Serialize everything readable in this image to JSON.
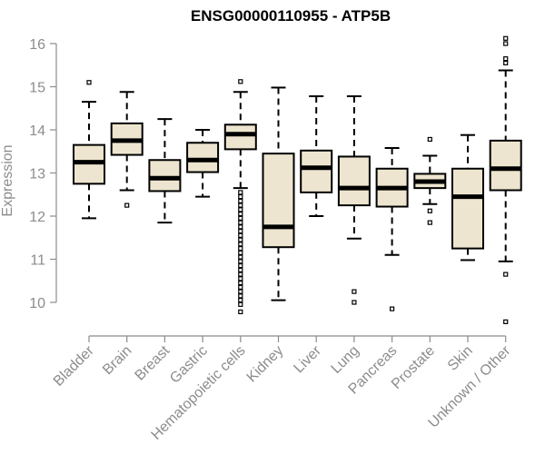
{
  "chart_data": {
    "type": "boxplot",
    "title": "ENSG00000110955 - ATP5B",
    "xlabel": "",
    "ylabel": "Expression",
    "ylim": [
      9.5,
      16.2
    ],
    "yticks": [
      10,
      11,
      12,
      13,
      14,
      15,
      16
    ],
    "box_color": "#ede5cf",
    "categories": [
      "Bladder",
      "Brain",
      "Breast",
      "Gastric",
      "Hematopoietic cells",
      "Kidney",
      "Liver",
      "Lung",
      "Pancreas",
      "Prostate",
      "Skin",
      "Unknown / Other"
    ],
    "series": [
      {
        "name": "Bladder",
        "whisker_low": 11.95,
        "q1": 12.75,
        "median": 13.25,
        "q3": 13.65,
        "whisker_high": 14.65,
        "outliers": [
          15.1
        ]
      },
      {
        "name": "Brain",
        "whisker_low": 12.6,
        "q1": 13.42,
        "median": 13.75,
        "q3": 14.15,
        "whisker_high": 14.88,
        "outliers": [
          12.25
        ]
      },
      {
        "name": "Breast",
        "whisker_low": 11.85,
        "q1": 12.58,
        "median": 12.88,
        "q3": 13.3,
        "whisker_high": 14.25,
        "outliers": []
      },
      {
        "name": "Gastric",
        "whisker_low": 12.45,
        "q1": 13.02,
        "median": 13.3,
        "q3": 13.7,
        "whisker_high": 14.0,
        "outliers": []
      },
      {
        "name": "Hematopoietic cells",
        "whisker_low": 12.65,
        "q1": 13.55,
        "median": 13.9,
        "q3": 14.12,
        "whisker_high": 14.88,
        "outliers": [
          15.12,
          12.55,
          12.45,
          12.35,
          12.25,
          12.15,
          12.05,
          11.95,
          11.85,
          11.75,
          11.65,
          11.55,
          11.45,
          11.35,
          11.25,
          11.15,
          11.05,
          10.95,
          10.85,
          10.75,
          10.65,
          10.55,
          10.45,
          10.35,
          10.25,
          10.15,
          10.05,
          9.95,
          9.78
        ]
      },
      {
        "name": "Kidney",
        "whisker_low": 10.05,
        "q1": 11.28,
        "median": 11.75,
        "q3": 13.45,
        "whisker_high": 14.98,
        "outliers": []
      },
      {
        "name": "Liver",
        "whisker_low": 12.0,
        "q1": 12.55,
        "median": 13.12,
        "q3": 13.52,
        "whisker_high": 14.78,
        "outliers": []
      },
      {
        "name": "Lung",
        "whisker_low": 11.48,
        "q1": 12.25,
        "median": 12.65,
        "q3": 13.38,
        "whisker_high": 14.78,
        "outliers": [
          10.25,
          10.0
        ]
      },
      {
        "name": "Pancreas",
        "whisker_low": 11.1,
        "q1": 12.22,
        "median": 12.65,
        "q3": 13.1,
        "whisker_high": 13.58,
        "outliers": [
          9.85
        ]
      },
      {
        "name": "Prostate",
        "whisker_low": 12.28,
        "q1": 12.65,
        "median": 12.8,
        "q3": 12.98,
        "whisker_high": 13.4,
        "outliers": [
          13.78,
          12.12,
          11.85
        ]
      },
      {
        "name": "Skin",
        "whisker_low": 10.98,
        "q1": 11.25,
        "median": 12.45,
        "q3": 13.1,
        "whisker_high": 13.88,
        "outliers": []
      },
      {
        "name": "Unknown / Other",
        "whisker_low": 10.95,
        "q1": 12.6,
        "median": 13.1,
        "q3": 13.75,
        "whisker_high": 15.38,
        "outliers": [
          16.12,
          16.0,
          15.65,
          15.55,
          10.65,
          9.55
        ]
      }
    ]
  }
}
